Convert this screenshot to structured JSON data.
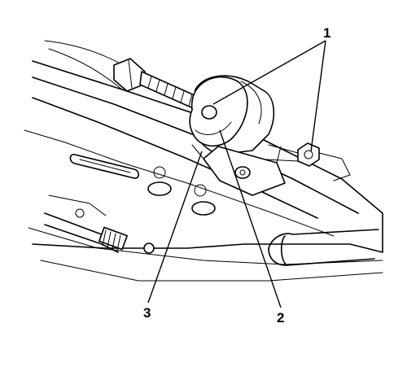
{
  "callouts": {
    "c1": "1",
    "c2": "2",
    "c3": "3"
  }
}
